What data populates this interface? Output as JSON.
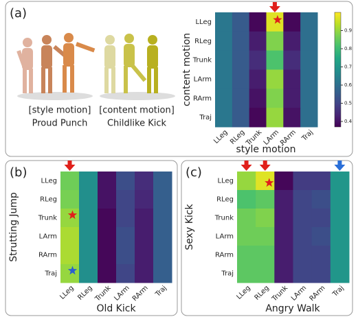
{
  "panels": [
    "(a)",
    "(b)",
    "(c)"
  ],
  "captions": [
    [
      "[style motion]",
      "Proud Punch"
    ],
    [
      "[content motion]",
      "Childlike Kick"
    ]
  ],
  "chart_data": [
    {
      "type": "heatmap",
      "xlabel": "style motion",
      "ylabel": "content motion",
      "colormap": "viridis",
      "x_categories": [
        "LLeg",
        "RLeg",
        "Trunk",
        "LArm",
        "RArm",
        "Traj"
      ],
      "y_categories": [
        "LLeg",
        "RLeg",
        "Trunk",
        "LArm",
        "RArm",
        "Traj"
      ],
      "values": [
        [
          0.62,
          0.55,
          0.38,
          0.97,
          0.38,
          0.6
        ],
        [
          0.62,
          0.55,
          0.42,
          0.88,
          0.42,
          0.6
        ],
        [
          0.62,
          0.55,
          0.45,
          0.82,
          0.45,
          0.6
        ],
        [
          0.62,
          0.55,
          0.42,
          0.9,
          0.42,
          0.6
        ],
        [
          0.62,
          0.55,
          0.4,
          0.88,
          0.42,
          0.6
        ],
        [
          0.62,
          0.55,
          0.38,
          0.9,
          0.4,
          0.6
        ]
      ],
      "zlim": [
        0.37,
        1.0
      ],
      "colorbar_ticks": [
        0.4,
        0.5,
        0.6,
        0.7,
        0.8,
        0.9
      ]
    },
    {
      "type": "heatmap",
      "xlabel": "Old Kick",
      "ylabel": "Strutting Jump",
      "colormap": "viridis",
      "x_categories": [
        "LLeg",
        "RLeg",
        "Trunk",
        "LArm",
        "RArm",
        "Traj"
      ],
      "y_categories": [
        "LLeg",
        "RLeg",
        "Trunk",
        "LArm",
        "RArm",
        "Traj"
      ],
      "values": [
        [
          0.86,
          0.68,
          0.4,
          0.52,
          0.45,
          0.56
        ],
        [
          0.87,
          0.68,
          0.4,
          0.5,
          0.44,
          0.56
        ],
        [
          0.9,
          0.68,
          0.38,
          0.5,
          0.42,
          0.56
        ],
        [
          0.92,
          0.68,
          0.38,
          0.52,
          0.42,
          0.56
        ],
        [
          0.92,
          0.68,
          0.38,
          0.52,
          0.42,
          0.56
        ],
        [
          0.9,
          0.68,
          0.38,
          0.5,
          0.42,
          0.56
        ]
      ],
      "zlim": [
        0.37,
        1.0
      ]
    },
    {
      "type": "heatmap",
      "xlabel": "Angry Walk",
      "ylabel": "Sexy Kick",
      "colormap": "viridis",
      "x_categories": [
        "LLeg",
        "RLeg",
        "Trunk",
        "LArm",
        "RArm",
        "Traj"
      ],
      "y_categories": [
        "LLeg",
        "RLeg",
        "Trunk",
        "LArm",
        "RArm",
        "Traj"
      ],
      "values": [
        [
          0.9,
          0.97,
          0.38,
          0.48,
          0.48,
          0.7
        ],
        [
          0.82,
          0.84,
          0.42,
          0.5,
          0.52,
          0.7
        ],
        [
          0.86,
          0.88,
          0.42,
          0.5,
          0.5,
          0.7
        ],
        [
          0.86,
          0.86,
          0.42,
          0.5,
          0.52,
          0.7
        ],
        [
          0.84,
          0.84,
          0.42,
          0.5,
          0.5,
          0.7
        ],
        [
          0.84,
          0.84,
          0.42,
          0.5,
          0.5,
          0.7
        ]
      ],
      "zlim": [
        0.37,
        1.0
      ]
    }
  ]
}
